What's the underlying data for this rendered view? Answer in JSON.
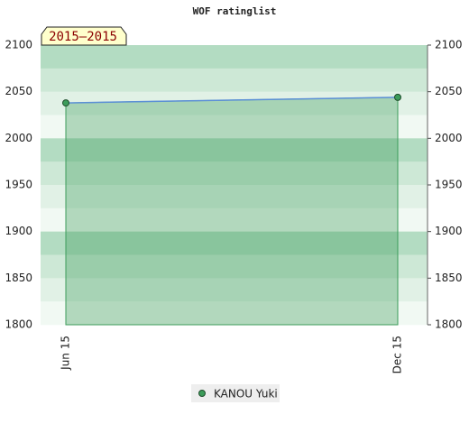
{
  "chart_data": {
    "type": "area",
    "title": "WOF ratinglist",
    "annotation": "2015–2015",
    "categories": [
      "Jun 15",
      "Dec 15"
    ],
    "series": [
      {
        "name": "KANOU Yuki",
        "color": "#3c9c5a",
        "line_color": "#5b8fd6",
        "values": [
          2038,
          2044
        ]
      }
    ],
    "ylim": [
      1800,
      2100
    ],
    "yticks": [
      1800,
      1850,
      1900,
      1950,
      2000,
      2050,
      2100
    ],
    "grid": true
  }
}
